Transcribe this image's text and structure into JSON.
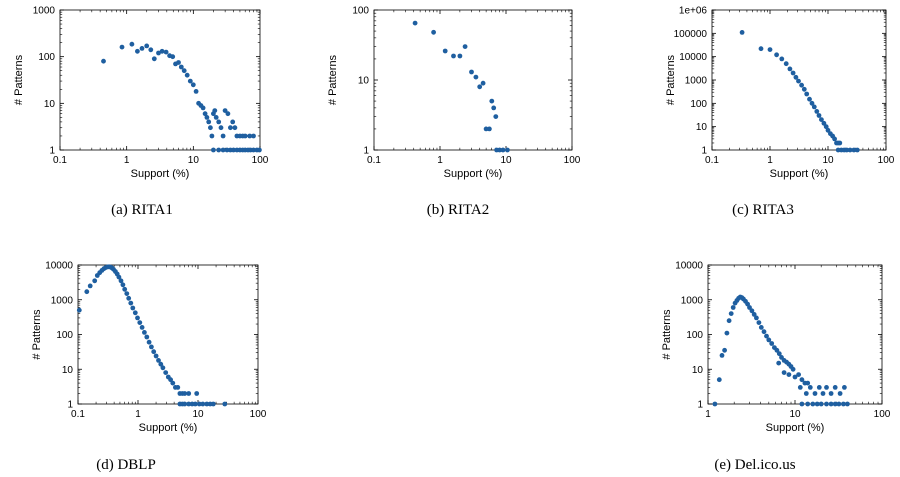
{
  "chart_data": [
    {
      "type": "scatter",
      "caption": "(a) RITA1",
      "xlabel": "Support (%)",
      "ylabel": "# Patterns",
      "xscale": "log",
      "yscale": "log",
      "xlim": [
        0.1,
        100
      ],
      "ylim": [
        1,
        1000
      ],
      "xticks": [
        0.1,
        1,
        10,
        100
      ],
      "xtick_labels": [
        "0.1",
        "1",
        "10",
        "100"
      ],
      "yticks": [
        1,
        10,
        100,
        1000
      ],
      "ytick_labels": [
        "1",
        "10",
        "100",
        "1000"
      ],
      "color": "#1f5fa0",
      "grid": false,
      "points": [
        [
          0.45,
          80
        ],
        [
          0.85,
          160
        ],
        [
          1.2,
          185
        ],
        [
          1.45,
          130
        ],
        [
          1.7,
          150
        ],
        [
          2.0,
          170
        ],
        [
          2.3,
          140
        ],
        [
          2.6,
          90
        ],
        [
          3.0,
          120
        ],
        [
          3.4,
          130
        ],
        [
          3.9,
          125
        ],
        [
          4.4,
          105
        ],
        [
          4.9,
          100
        ],
        [
          5.4,
          70
        ],
        [
          6.0,
          75
        ],
        [
          6.6,
          60
        ],
        [
          7.3,
          50
        ],
        [
          8.1,
          40
        ],
        [
          9.0,
          30
        ],
        [
          10.0,
          25
        ],
        [
          11.0,
          18
        ],
        [
          12.0,
          10
        ],
        [
          13.0,
          9
        ],
        [
          14.0,
          8
        ],
        [
          15.0,
          6
        ],
        [
          16.0,
          5
        ],
        [
          17.0,
          4
        ],
        [
          18.0,
          3
        ],
        [
          19.0,
          2
        ],
        [
          20.0,
          6
        ],
        [
          21.0,
          7
        ],
        [
          22.0,
          5
        ],
        [
          24.0,
          4
        ],
        [
          26.0,
          3
        ],
        [
          28.0,
          2
        ],
        [
          30.0,
          7
        ],
        [
          33.0,
          6
        ],
        [
          36.0,
          3
        ],
        [
          39.0,
          4
        ],
        [
          42.0,
          3
        ],
        [
          45.0,
          2
        ],
        [
          50.0,
          2
        ],
        [
          55.0,
          2
        ],
        [
          60.0,
          2
        ],
        [
          70.0,
          2
        ],
        [
          80.0,
          2
        ],
        [
          20.0,
          1
        ],
        [
          24.0,
          1
        ],
        [
          28.0,
          1
        ],
        [
          32.0,
          1
        ],
        [
          36.0,
          1
        ],
        [
          40.0,
          1
        ],
        [
          45.0,
          1
        ],
        [
          50.0,
          1
        ],
        [
          55.0,
          1
        ],
        [
          60.0,
          1
        ],
        [
          66.0,
          1
        ],
        [
          72.0,
          1
        ],
        [
          80.0,
          1
        ],
        [
          90.0,
          1
        ],
        [
          98.0,
          1
        ]
      ]
    },
    {
      "type": "scatter",
      "caption": "(b) RITA2",
      "xlabel": "Support (%)",
      "ylabel": "# Patterns",
      "xscale": "log",
      "yscale": "log",
      "xlim": [
        0.1,
        100
      ],
      "ylim": [
        1,
        100
      ],
      "xticks": [
        0.1,
        1,
        10,
        100
      ],
      "xtick_labels": [
        "0.1",
        "1",
        "10",
        "100"
      ],
      "yticks": [
        1,
        10,
        100
      ],
      "ytick_labels": [
        "1",
        "10",
        "100"
      ],
      "color": "#1f5fa0",
      "grid": false,
      "points": [
        [
          0.42,
          65
        ],
        [
          0.8,
          48
        ],
        [
          1.2,
          26
        ],
        [
          1.6,
          22
        ],
        [
          2.0,
          22
        ],
        [
          2.4,
          30
        ],
        [
          3.0,
          13
        ],
        [
          3.5,
          11
        ],
        [
          4.0,
          8
        ],
        [
          4.5,
          9
        ],
        [
          5.0,
          2
        ],
        [
          5.6,
          2
        ],
        [
          6.1,
          5
        ],
        [
          6.5,
          4
        ],
        [
          7.0,
          3
        ],
        [
          7.2,
          1
        ],
        [
          8.0,
          1
        ],
        [
          9.0,
          1
        ],
        [
          10.5,
          1
        ]
      ]
    },
    {
      "type": "scatter",
      "caption": "(c) RITA3",
      "xlabel": "Support (%)",
      "ylabel": "# Patterns",
      "xscale": "log",
      "yscale": "log",
      "xlim": [
        0.1,
        100
      ],
      "ylim": [
        1,
        1000000
      ],
      "xticks": [
        0.1,
        1,
        10,
        100
      ],
      "xtick_labels": [
        "0.1",
        "1",
        "10",
        "100"
      ],
      "yticks": [
        1,
        10,
        100,
        1000,
        10000,
        100000,
        1000000
      ],
      "ytick_labels": [
        "1",
        "10",
        "100",
        "1000",
        "10000",
        "100000",
        "1e+06"
      ],
      "color": "#1f5fa0",
      "grid": false,
      "points": [
        [
          0.33,
          110000
        ],
        [
          0.7,
          22000
        ],
        [
          1.0,
          20000
        ],
        [
          1.3,
          12000
        ],
        [
          1.6,
          8000
        ],
        [
          1.9,
          5000
        ],
        [
          2.2,
          3000
        ],
        [
          2.5,
          2000
        ],
        [
          2.8,
          1300
        ],
        [
          3.1,
          900
        ],
        [
          3.5,
          600
        ],
        [
          3.9,
          400
        ],
        [
          4.3,
          250
        ],
        [
          4.8,
          150
        ],
        [
          5.3,
          100
        ],
        [
          5.8,
          70
        ],
        [
          6.4,
          45
        ],
        [
          7.0,
          30
        ],
        [
          7.7,
          20
        ],
        [
          8.5,
          14
        ],
        [
          9.3,
          10
        ],
        [
          10.0,
          7
        ],
        [
          11.0,
          5
        ],
        [
          12.0,
          4
        ],
        [
          13.0,
          3
        ],
        [
          14.0,
          2
        ],
        [
          15.0,
          2
        ],
        [
          16.0,
          2
        ],
        [
          15.0,
          1
        ],
        [
          17.0,
          1
        ],
        [
          19.0,
          1
        ],
        [
          21.0,
          1
        ],
        [
          24.0,
          1
        ],
        [
          28.0,
          1
        ],
        [
          32.0,
          1
        ]
      ]
    },
    {
      "type": "scatter",
      "caption": "(d) DBLP",
      "xlabel": "Support (%)",
      "ylabel": "# Patterns",
      "xscale": "log",
      "yscale": "log",
      "xlim": [
        0.1,
        100
      ],
      "ylim": [
        1,
        10000
      ],
      "xticks": [
        0.1,
        1,
        10,
        100
      ],
      "xtick_labels": [
        "0.1",
        "1",
        "10",
        "100"
      ],
      "yticks": [
        1,
        10,
        100,
        1000,
        10000
      ],
      "ytick_labels": [
        "1",
        "10",
        "100",
        "1000",
        "10000"
      ],
      "color": "#1f5fa0",
      "grid": false,
      "points": [
        [
          0.105,
          500
        ],
        [
          0.14,
          1700
        ],
        [
          0.16,
          2500
        ],
        [
          0.19,
          3500
        ],
        [
          0.21,
          5000
        ],
        [
          0.23,
          6000
        ],
        [
          0.25,
          7000
        ],
        [
          0.27,
          7800
        ],
        [
          0.29,
          8400
        ],
        [
          0.31,
          8800
        ],
        [
          0.33,
          8900
        ],
        [
          0.35,
          8700
        ],
        [
          0.37,
          8200
        ],
        [
          0.39,
          7500
        ],
        [
          0.42,
          6500
        ],
        [
          0.45,
          5500
        ],
        [
          0.48,
          4500
        ],
        [
          0.52,
          3500
        ],
        [
          0.56,
          2700
        ],
        [
          0.6,
          2000
        ],
        [
          0.65,
          1500
        ],
        [
          0.7,
          1100
        ],
        [
          0.76,
          800
        ],
        [
          0.82,
          580
        ],
        [
          0.9,
          420
        ],
        [
          0.98,
          300
        ],
        [
          1.07,
          220
        ],
        [
          1.17,
          160
        ],
        [
          1.28,
          115
        ],
        [
          1.4,
          85
        ],
        [
          1.53,
          60
        ],
        [
          1.67,
          44
        ],
        [
          1.83,
          32
        ],
        [
          2.0,
          24
        ],
        [
          2.2,
          18
        ],
        [
          2.4,
          14
        ],
        [
          2.6,
          11
        ],
        [
          2.9,
          8
        ],
        [
          3.2,
          6
        ],
        [
          3.5,
          5
        ],
        [
          3.8,
          4
        ],
        [
          4.2,
          3
        ],
        [
          4.6,
          3
        ],
        [
          5.0,
          2
        ],
        [
          5.5,
          2
        ],
        [
          6.0,
          2
        ],
        [
          7.0,
          2
        ],
        [
          9.5,
          2
        ],
        [
          5.0,
          1
        ],
        [
          5.5,
          1
        ],
        [
          6.0,
          1
        ],
        [
          7.0,
          1
        ],
        [
          8.0,
          1
        ],
        [
          9.0,
          1
        ],
        [
          10.5,
          1
        ],
        [
          12.0,
          1
        ],
        [
          14.0,
          1
        ],
        [
          16.0,
          1
        ],
        [
          18.0,
          1
        ],
        [
          28.0,
          1
        ]
      ]
    },
    {
      "type": "scatter",
      "caption": "(e) Del.ico.us",
      "xlabel": "Support (%)",
      "ylabel": "# Patterns",
      "xscale": "log",
      "yscale": "log",
      "xlim": [
        1,
        100
      ],
      "ylim": [
        1,
        10000
      ],
      "xticks": [
        1,
        10,
        100
      ],
      "xtick_labels": [
        "1",
        "10",
        "100"
      ],
      "yticks": [
        1,
        10,
        100,
        1000,
        10000
      ],
      "ytick_labels": [
        "1",
        "10",
        "100",
        "1000",
        "10000"
      ],
      "color": "#1f5fa0",
      "grid": false,
      "points": [
        [
          1.2,
          1
        ],
        [
          1.35,
          5
        ],
        [
          1.45,
          25
        ],
        [
          1.55,
          35
        ],
        [
          1.65,
          110
        ],
        [
          1.75,
          250
        ],
        [
          1.85,
          400
        ],
        [
          1.95,
          600
        ],
        [
          2.05,
          800
        ],
        [
          2.15,
          950
        ],
        [
          2.25,
          1100
        ],
        [
          2.35,
          1200
        ],
        [
          2.45,
          1150
        ],
        [
          2.55,
          1050
        ],
        [
          2.7,
          900
        ],
        [
          2.85,
          750
        ],
        [
          3.0,
          600
        ],
        [
          3.2,
          480
        ],
        [
          3.4,
          380
        ],
        [
          3.6,
          300
        ],
        [
          3.85,
          220
        ],
        [
          4.1,
          160
        ],
        [
          4.4,
          120
        ],
        [
          4.7,
          90
        ],
        [
          5.0,
          70
        ],
        [
          5.4,
          55
        ],
        [
          5.8,
          42
        ],
        [
          6.2,
          35
        ],
        [
          6.6,
          28
        ],
        [
          7.0,
          22
        ],
        [
          7.5,
          18
        ],
        [
          8.0,
          16
        ],
        [
          8.5,
          14
        ],
        [
          9.0,
          12
        ],
        [
          9.5,
          10
        ],
        [
          6.5,
          15
        ],
        [
          7.5,
          8
        ],
        [
          8.5,
          7
        ],
        [
          10.0,
          6
        ],
        [
          11.0,
          7
        ],
        [
          12.0,
          5
        ],
        [
          13.0,
          4
        ],
        [
          14.0,
          4
        ],
        [
          11.5,
          3
        ],
        [
          13.5,
          2
        ],
        [
          15.0,
          3
        ],
        [
          17.0,
          2
        ],
        [
          19.0,
          3
        ],
        [
          21.0,
          2
        ],
        [
          23.0,
          3
        ],
        [
          26.0,
          2
        ],
        [
          29.0,
          3
        ],
        [
          33.0,
          2
        ],
        [
          37.0,
          3
        ],
        [
          12.0,
          1
        ],
        [
          14.0,
          1
        ],
        [
          16.0,
          1
        ],
        [
          18.0,
          1
        ],
        [
          20.0,
          1
        ],
        [
          23.0,
          1
        ],
        [
          26.0,
          1
        ],
        [
          29.0,
          1
        ],
        [
          32.0,
          1
        ],
        [
          36.0,
          1
        ],
        [
          40.0,
          1
        ]
      ]
    }
  ]
}
